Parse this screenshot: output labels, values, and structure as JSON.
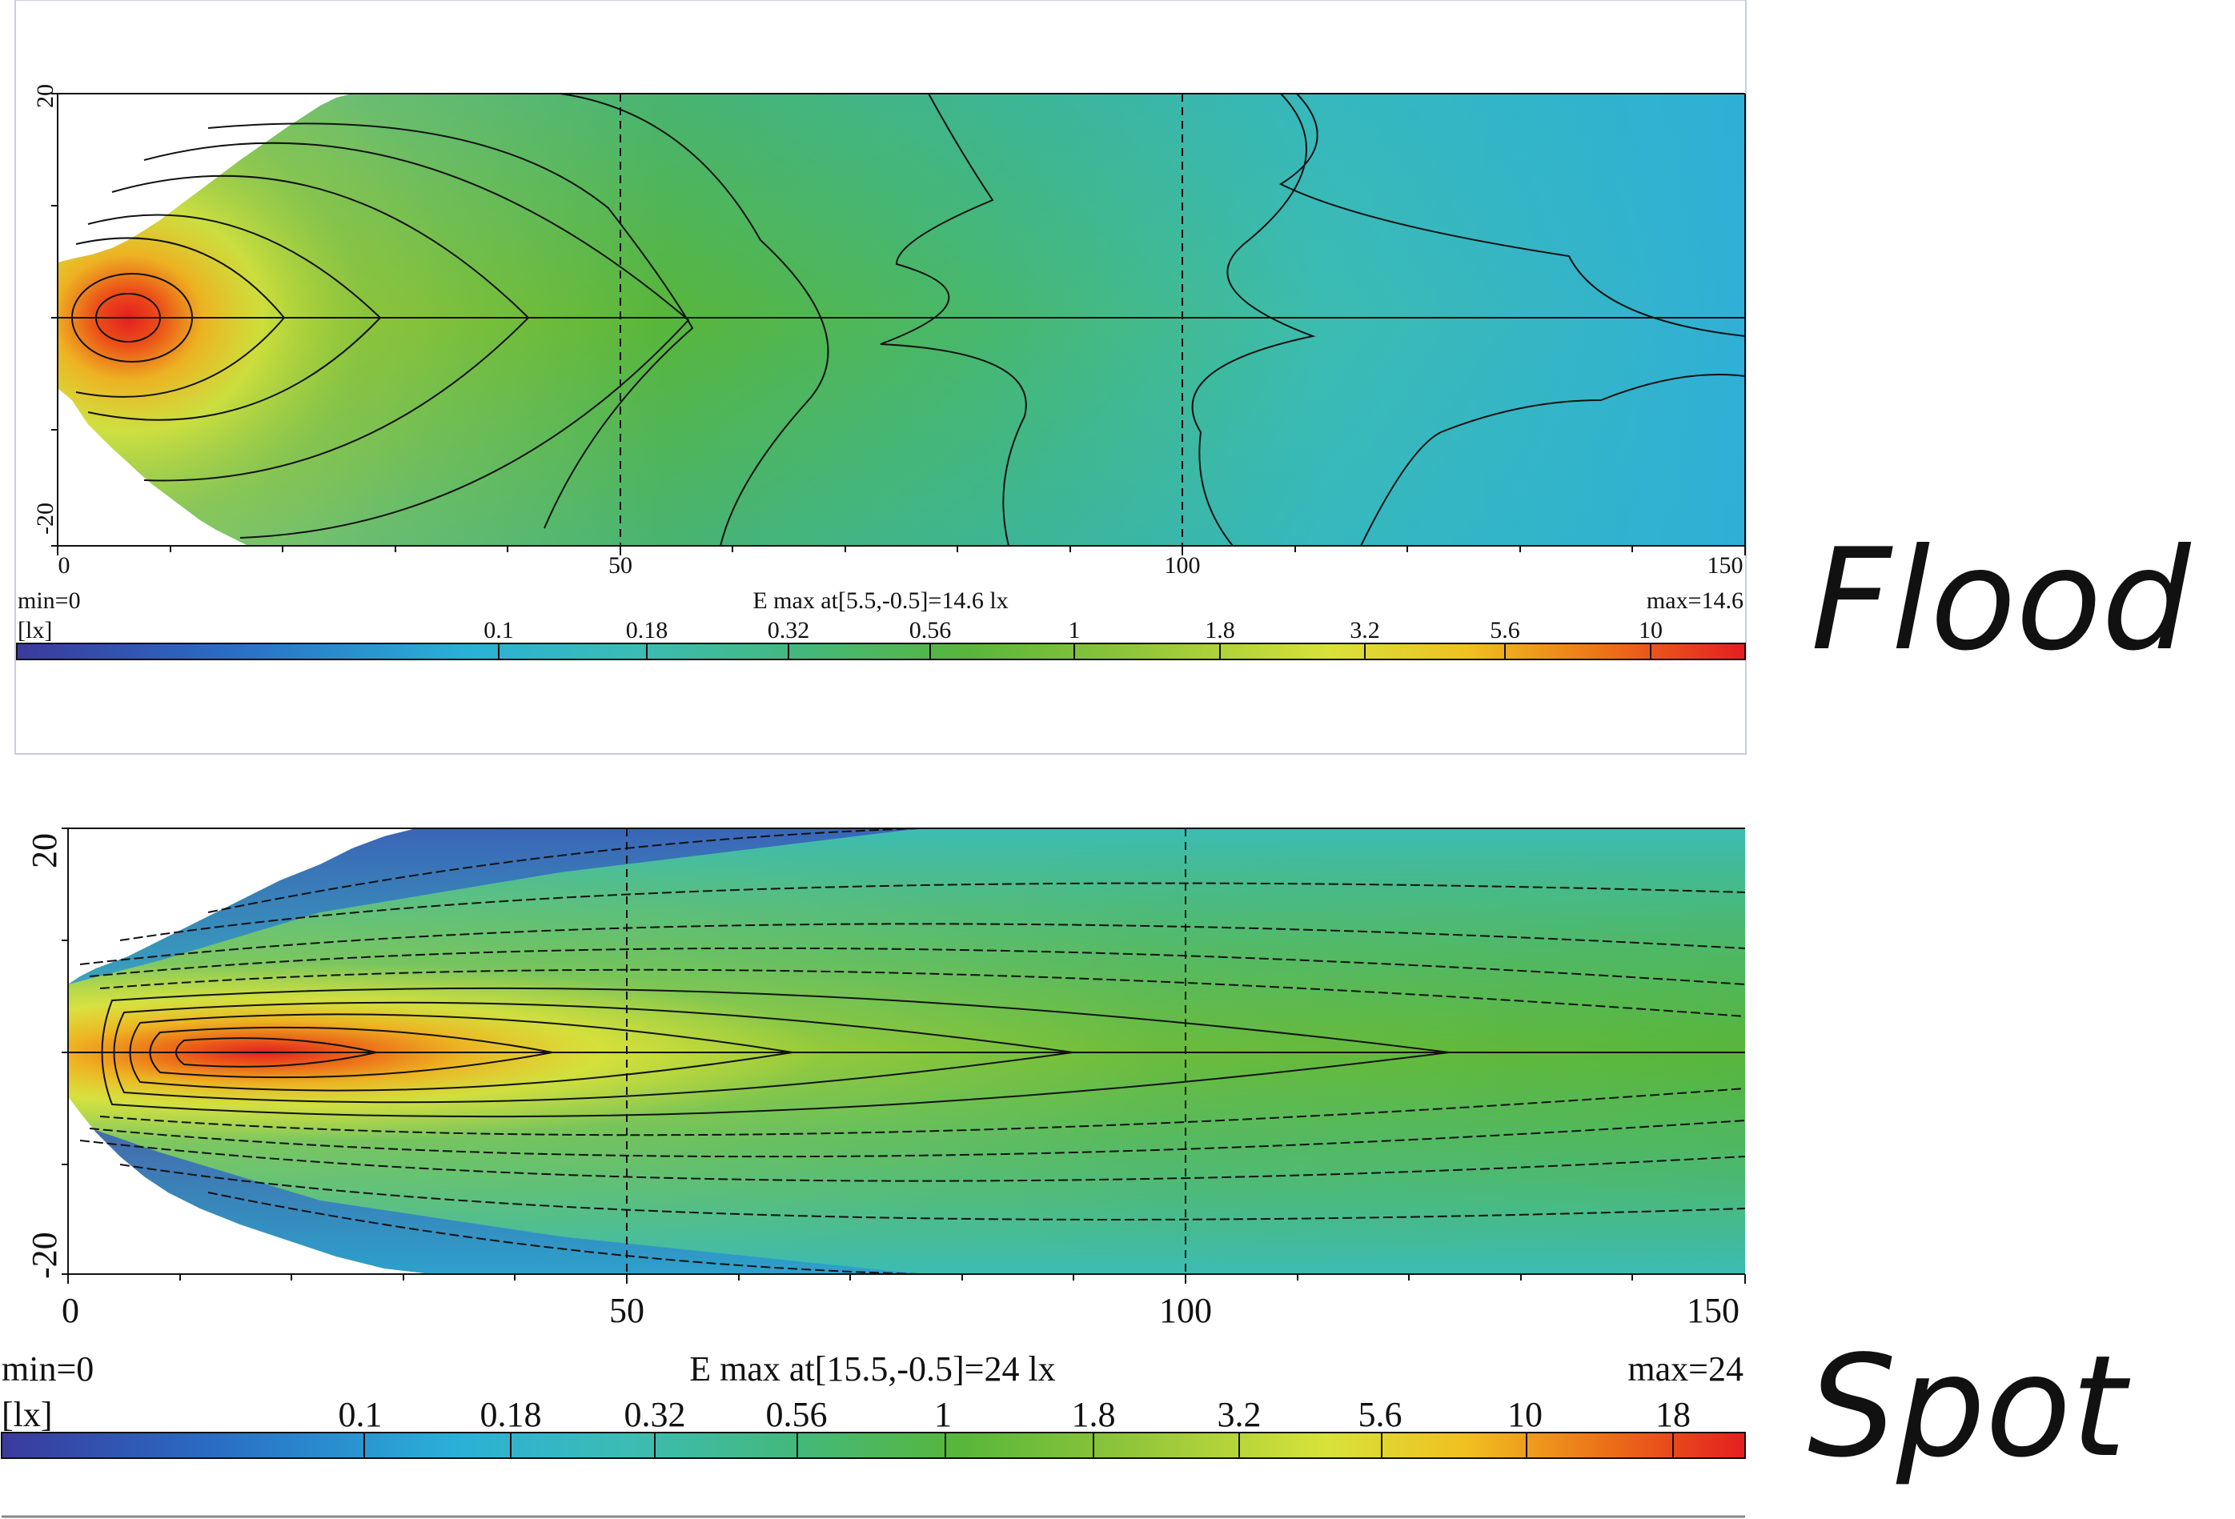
{
  "chart_data": [
    {
      "type": "heatmap",
      "label": "Flood",
      "x_range": [
        0,
        150
      ],
      "y_range": [
        -20,
        20
      ],
      "x_ticks": [
        "0",
        "50",
        "100",
        "150"
      ],
      "y_ticks": [
        "20",
        "-20"
      ],
      "dashed_vertical_lines_x": [
        50,
        100
      ],
      "min_text": "min=0",
      "max_text": "max=14.6",
      "emax_text": "E max at[5.5,-0.5]=14.6 lx",
      "unit_text": "[lx]",
      "peak": {
        "x": 5.5,
        "y": -0.5,
        "value": 14.6
      },
      "scale_labels": [
        "0.1",
        "0.18",
        "0.32",
        "0.56",
        "1",
        "1.8",
        "3.2",
        "5.6",
        "10"
      ],
      "scale_type": "log"
    },
    {
      "type": "heatmap",
      "label": "Spot",
      "x_range": [
        0,
        150
      ],
      "y_range": [
        -20,
        20
      ],
      "x_ticks": [
        "0",
        "50",
        "100",
        "150"
      ],
      "y_ticks": [
        "20",
        "-20"
      ],
      "dashed_vertical_lines_x": [
        50,
        100
      ],
      "min_text": "min=0",
      "max_text": "max=24",
      "emax_text": "E max at[15.5,-0.5]=24 lx",
      "unit_text": "[lx]",
      "peak": {
        "x": 15.5,
        "y": -0.5,
        "value": 24
      },
      "scale_labels": [
        "0.1",
        "0.18",
        "0.32",
        "0.56",
        "1",
        "1.8",
        "3.2",
        "5.6",
        "10",
        "18"
      ],
      "scale_type": "log"
    }
  ],
  "colors": {
    "ramp": [
      "#3a3a9c",
      "#2a6cc4",
      "#2ab0d8",
      "#3cbcb4",
      "#44b878",
      "#58b63a",
      "#8cc43a",
      "#d8e23a",
      "#f0c020",
      "#ec7018",
      "#e41e20"
    ]
  }
}
